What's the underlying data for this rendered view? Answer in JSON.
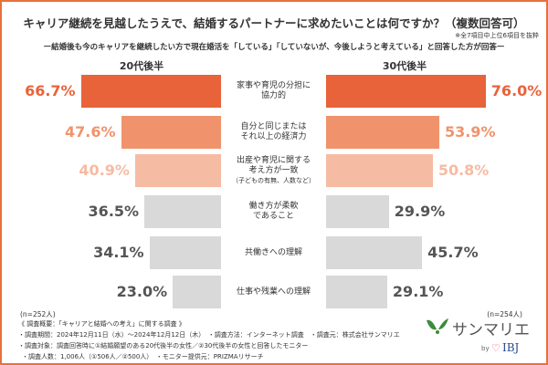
{
  "title": "キャリア継続を見越したうえで、結婚するパートナーに求めたいことは何ですか？（複数回答可）",
  "note": "※全7項目中上位6項目を抜粋",
  "subtitle": "ー結婚後も今のキャリアを継続したい方で現在婚活を「している」「していないが、今後しようと考えている」と回答した方が回答ー",
  "chart_data": {
    "type": "bar",
    "orientation": "horizontal-butterfly",
    "categories": [
      "家事や育児の分担に\n協力的",
      "自分と同じまたは\nそれ以上の経済力",
      "出産や育児に関する\n考え方が一致",
      "働き方が柔軟\nであること",
      "共働きへの理解",
      "仕事や残業への理解"
    ],
    "category_notes": [
      "",
      "",
      "（子どもの有無、人数など）",
      "",
      "",
      ""
    ],
    "series": [
      {
        "name": "20代後半",
        "values": [
          66.7,
          47.6,
          40.9,
          36.5,
          34.1,
          23.0
        ],
        "n": "(n=252人)"
      },
      {
        "name": "30代後半",
        "values": [
          76.0,
          53.9,
          50.8,
          29.9,
          45.7,
          29.1
        ],
        "n": "(n=254人)"
      }
    ],
    "unit": "%",
    "colors": [
      "#e8633a",
      "#f0936c",
      "#f6bba3",
      "#d9d9d9",
      "#d9d9d9",
      "#d9d9d9"
    ],
    "text_colors": [
      "#e8633a",
      "#f0936c",
      "#f6bba3",
      "#555555",
      "#555555",
      "#555555"
    ]
  },
  "footer": [
    "《 調査概要：「キャリアと結婚への考え」に関する調査 》",
    "・調査期間：2024年12月11日（水）～2024年12月12日（木）　・調査方法：インターネット調査　・調査元：株式会社サンマリエ",
    "・調査対象：調査回答時に①結婚願望のある20代後半の女性／②30代後半の女性と回答したモニター",
    "・調査人数：1,006人（①506人／②500人）　・モニター提供元：PRIZMAリサーチ"
  ],
  "logo": {
    "name": "サンマリエ",
    "by": "by",
    "brand": "IBJ"
  }
}
